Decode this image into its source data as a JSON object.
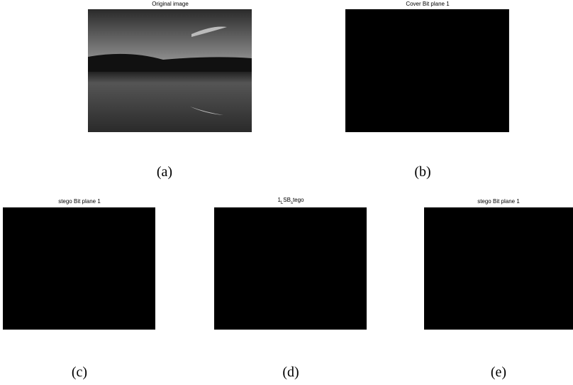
{
  "panels": [
    {
      "title": "Original image",
      "caption": "(a)"
    },
    {
      "title": "Cover Bit plane 1",
      "caption": "(b)"
    },
    {
      "title": "stego Bit plane 1",
      "caption": "(c)"
    },
    {
      "title_parts": [
        "1",
        "L",
        "SB",
        "s",
        "tego"
      ],
      "caption": "(d)"
    },
    {
      "title": "stego Bit plane 1",
      "caption": "(e)"
    }
  ]
}
